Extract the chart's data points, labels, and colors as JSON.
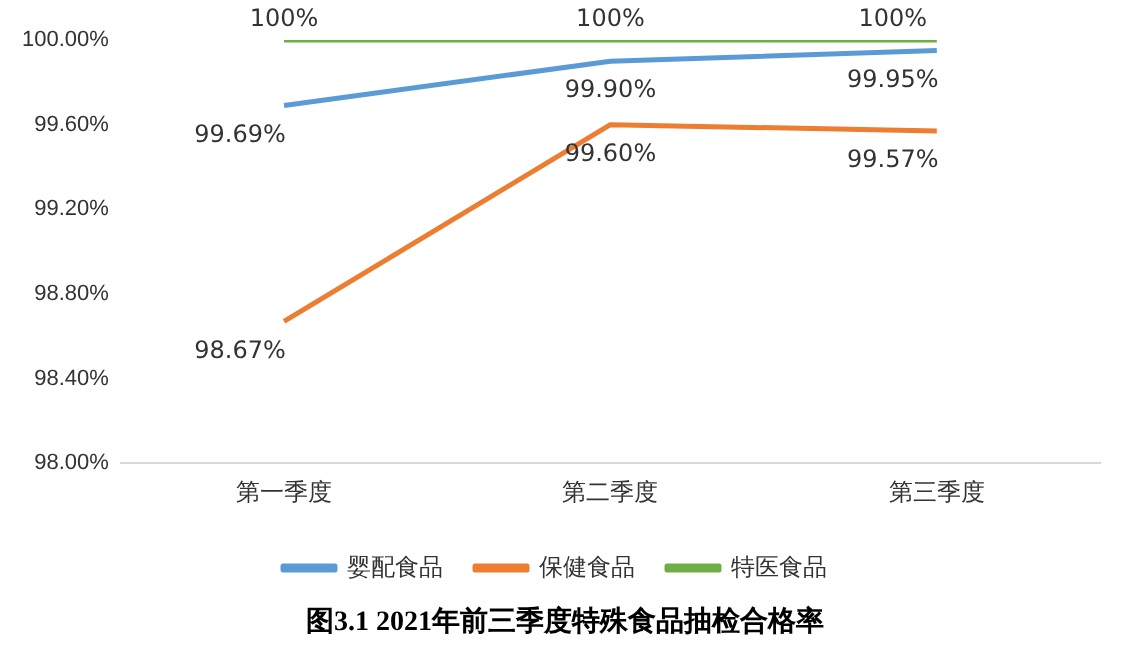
{
  "chart_data": {
    "type": "line",
    "title": "图3.1 2021年前三季度特殊食品抽检合格率",
    "categories": [
      "第一季度",
      "第二季度",
      "第三季度"
    ],
    "series": [
      {
        "name": "婴配食品",
        "color": "#5b9bd5",
        "values": [
          99.69,
          99.9,
          99.95
        ],
        "value_labels": [
          "99.69%",
          "99.90%",
          "99.95%"
        ]
      },
      {
        "name": "保健食品",
        "color": "#ed7d31",
        "values": [
          98.67,
          99.6,
          99.57
        ],
        "value_labels": [
          "98.67%",
          "99.60%",
          "99.57%"
        ]
      },
      {
        "name": "特医食品",
        "color": "#70ad47",
        "values": [
          100,
          100,
          100
        ],
        "value_labels": [
          "100%",
          "100%",
          "100%"
        ]
      }
    ],
    "ylim": [
      98,
      100
    ],
    "yticks": [
      {
        "value": 98,
        "label": "98.00%"
      },
      {
        "value": 98.4,
        "label": "98.40%"
      },
      {
        "value": 98.8,
        "label": "98.80%"
      },
      {
        "value": 99.2,
        "label": "99.20%"
      },
      {
        "value": 99.6,
        "label": "99.60%"
      },
      {
        "value": 100,
        "label": "100.00%"
      }
    ],
    "grid": false,
    "legend": "bottom",
    "marker": "none",
    "line_style": "solid"
  }
}
